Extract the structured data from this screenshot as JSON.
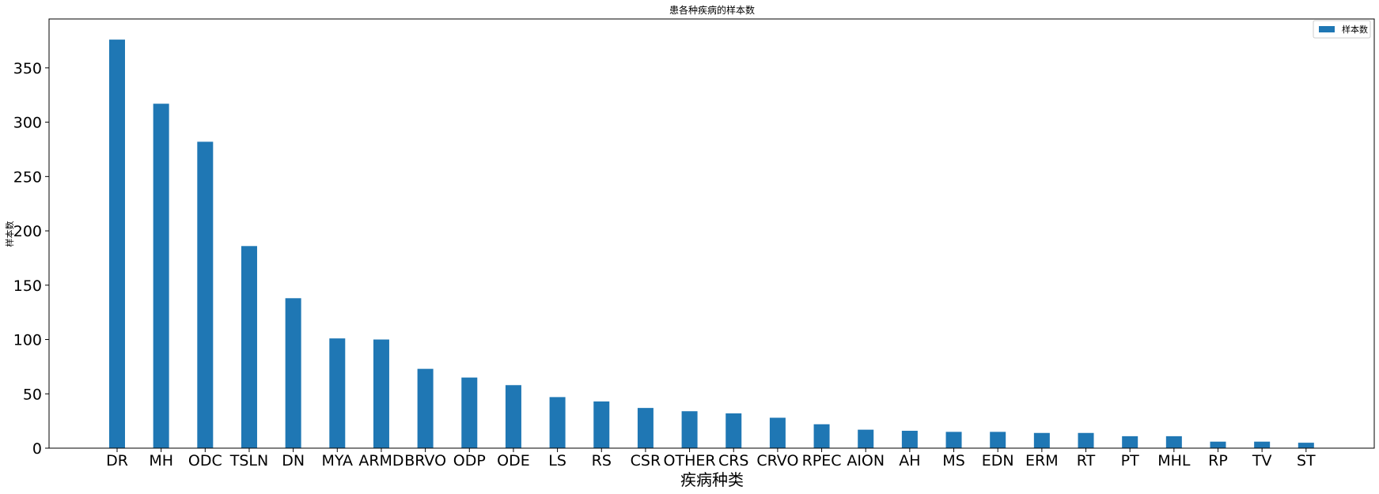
{
  "chart_data": {
    "type": "bar",
    "title": "患各种疾病的样本数",
    "xlabel": "疾病种类",
    "ylabel": "样本数",
    "categories": [
      "DR",
      "MH",
      "ODC",
      "TSLN",
      "DN",
      "MYA",
      "ARMD",
      "BRVO",
      "ODP",
      "ODE",
      "LS",
      "RS",
      "CSR",
      "OTHER",
      "CRS",
      "CRVO",
      "RPEC",
      "AION",
      "AH",
      "MS",
      "EDN",
      "ERM",
      "RT",
      "PT",
      "MHL",
      "RP",
      "TV",
      "ST"
    ],
    "series": [
      {
        "name": "样本数",
        "color": "#1f77b4",
        "values": [
          376,
          317,
          282,
          186,
          138,
          101,
          100,
          73,
          65,
          58,
          47,
          43,
          37,
          34,
          32,
          28,
          22,
          17,
          16,
          15,
          15,
          14,
          14,
          11,
          11,
          6,
          6,
          5
        ]
      }
    ],
    "ylim": [
      0,
      395
    ],
    "yticks": [
      0,
      50,
      100,
      150,
      200,
      250,
      300,
      350
    ],
    "grid": false,
    "legend_position": "top-right"
  }
}
